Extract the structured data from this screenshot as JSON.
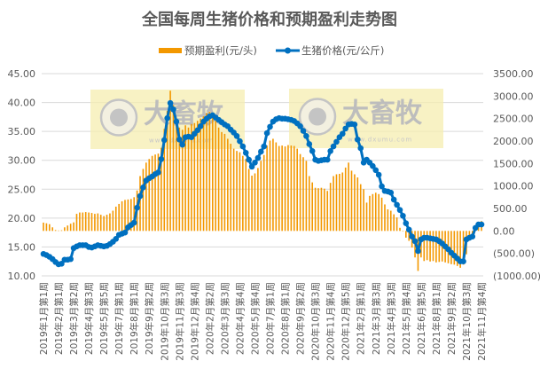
{
  "chart_data": {
    "type": "bar+line",
    "title": "全国每周生猪价格和预期盈利走势图",
    "legend_position": "top",
    "grid": true,
    "colors": {
      "profit": "#F39800",
      "price": "#0070C0",
      "negative_tick": "#FF0000"
    },
    "watermark": {
      "brand": "大畜牧",
      "url": "www.dxumu.com"
    },
    "left_axis": {
      "ylim": [
        10,
        45
      ],
      "ticks": [
        "45.00",
        "40.00",
        "35.00",
        "30.00",
        "25.00",
        "20.00",
        "15.00",
        "10.00"
      ]
    },
    "right_axis": {
      "ylim": [
        -1000,
        3500
      ],
      "ticks": [
        "3500.00",
        "3000.00",
        "2500.00",
        "2000.00",
        "1500.00",
        "1000.00",
        "500.00",
        "0.00",
        "(500.00)",
        "(1000.00)"
      ]
    },
    "x_tick_labels": [
      "2019年1月第1周",
      "2019年2月第1周",
      "2019年3月第2周",
      "2019年4月第3周",
      "2019年5月第5周",
      "2019年7月第1周",
      "2019年8月第1周",
      "2019年9月第2周",
      "2019年10月第3周",
      "2019年11月第3周",
      "2019年12月第4周",
      "2020年2月第2周",
      "2020年3月第3周",
      "2020年4月第4周",
      "2020年5月第4周",
      "2020年7月第1周",
      "2020年8月第1周",
      "2020年9月第2周",
      "2020年10月第3周",
      "2020年11月第4周",
      "2020年12月第5周",
      "2021年2月第1周",
      "2021年3月第3周",
      "2021年4月第3周",
      "2021年5月第4周",
      "2021年6月第5周",
      "2021年8月第1周",
      "2021年9月第2周",
      "2021年10月第3周",
      "2021年11月第4周"
    ],
    "series": [
      {
        "name": "预期盈利(元/头)",
        "type": "bar",
        "axis": "right",
        "values": [
          185,
          170,
          150,
          80,
          20,
          10,
          15,
          80,
          120,
          160,
          190,
          380,
          410,
          410,
          420,
          410,
          400,
          380,
          390,
          360,
          330,
          360,
          390,
          450,
          540,
          600,
          660,
          690,
          700,
          710,
          750,
          900,
          1220,
          1380,
          1520,
          1600,
          1670,
          1700,
          1720,
          1850,
          2270,
          2670,
          3120,
          2800,
          2500,
          2300,
          2250,
          2350,
          2300,
          2380,
          2400,
          2450,
          2500,
          2550,
          2620,
          2650,
          2600,
          2450,
          2300,
          2200,
          2160,
          2050,
          1940,
          1830,
          1780,
          1750,
          1670,
          1600,
          1380,
          1230,
          1280,
          1400,
          1560,
          1690,
          1900,
          2010,
          2050,
          1970,
          1890,
          1900,
          1880,
          1910,
          1900,
          1890,
          1830,
          1710,
          1640,
          1560,
          1220,
          1080,
          960,
          950,
          960,
          940,
          890,
          1070,
          1220,
          1260,
          1270,
          1300,
          1410,
          1520,
          1340,
          1260,
          1190,
          1040,
          930,
          630,
          780,
          820,
          850,
          820,
          740,
          590,
          480,
          450,
          370,
          300,
          70,
          0,
          -150,
          -220,
          -370,
          -590,
          -890,
          -590,
          -670,
          -650,
          -680,
          -670,
          -700,
          -690,
          -680,
          -700,
          -720,
          -740,
          -750,
          -780,
          -820,
          -750,
          -520,
          -220,
          -75,
          40,
          150,
          220
        ]
      },
      {
        "name": "生猪价格(元/公斤)",
        "type": "line",
        "axis": "left",
        "values": [
          13.8,
          13.6,
          13.3,
          12.9,
          12.4,
          12.0,
          12.1,
          12.8,
          12.8,
          12.9,
          14.8,
          15.1,
          15.3,
          15.3,
          15.3,
          15.0,
          14.9,
          15.1,
          15.3,
          15.2,
          15.1,
          15.2,
          15.5,
          15.9,
          16.4,
          17.1,
          17.3,
          17.5,
          18.4,
          18.8,
          19.2,
          21.8,
          23.8,
          25.3,
          26.5,
          26.9,
          27.2,
          27.6,
          27.9,
          30.2,
          33.5,
          37.3,
          39.9,
          38.8,
          36.7,
          33.6,
          32.7,
          34.0,
          34.1,
          34.0,
          34.6,
          35.2,
          35.9,
          36.7,
          37.2,
          37.6,
          37.8,
          37.4,
          37.0,
          36.6,
          36.2,
          35.9,
          35.3,
          34.8,
          34.2,
          33.3,
          32.4,
          31.3,
          30.1,
          28.9,
          29.6,
          30.4,
          31.5,
          32.4,
          34.7,
          35.8,
          36.7,
          37.1,
          37.3,
          37.2,
          37.2,
          37.1,
          37.0,
          36.8,
          36.4,
          35.9,
          35.1,
          34.2,
          32.8,
          31.6,
          30.1,
          29.9,
          30.0,
          30.1,
          30.1,
          31.6,
          32.4,
          33.2,
          34.0,
          34.6,
          35.5,
          36.2,
          36.3,
          36.2,
          33.6,
          32.1,
          29.6,
          30.1,
          29.6,
          29.0,
          28.3,
          27.5,
          25.5,
          24.7,
          24.6,
          24.4,
          23.2,
          22.3,
          21.4,
          20.4,
          19.1,
          18.0,
          16.8,
          16.0,
          14.3,
          16.3,
          16.6,
          16.6,
          16.5,
          16.4,
          16.3,
          16.0,
          15.6,
          15.1,
          14.6,
          14.0,
          13.5,
          13.0,
          12.5,
          12.5,
          16.3,
          16.6,
          16.8,
          18.3,
          18.9,
          18.9
        ]
      }
    ]
  }
}
